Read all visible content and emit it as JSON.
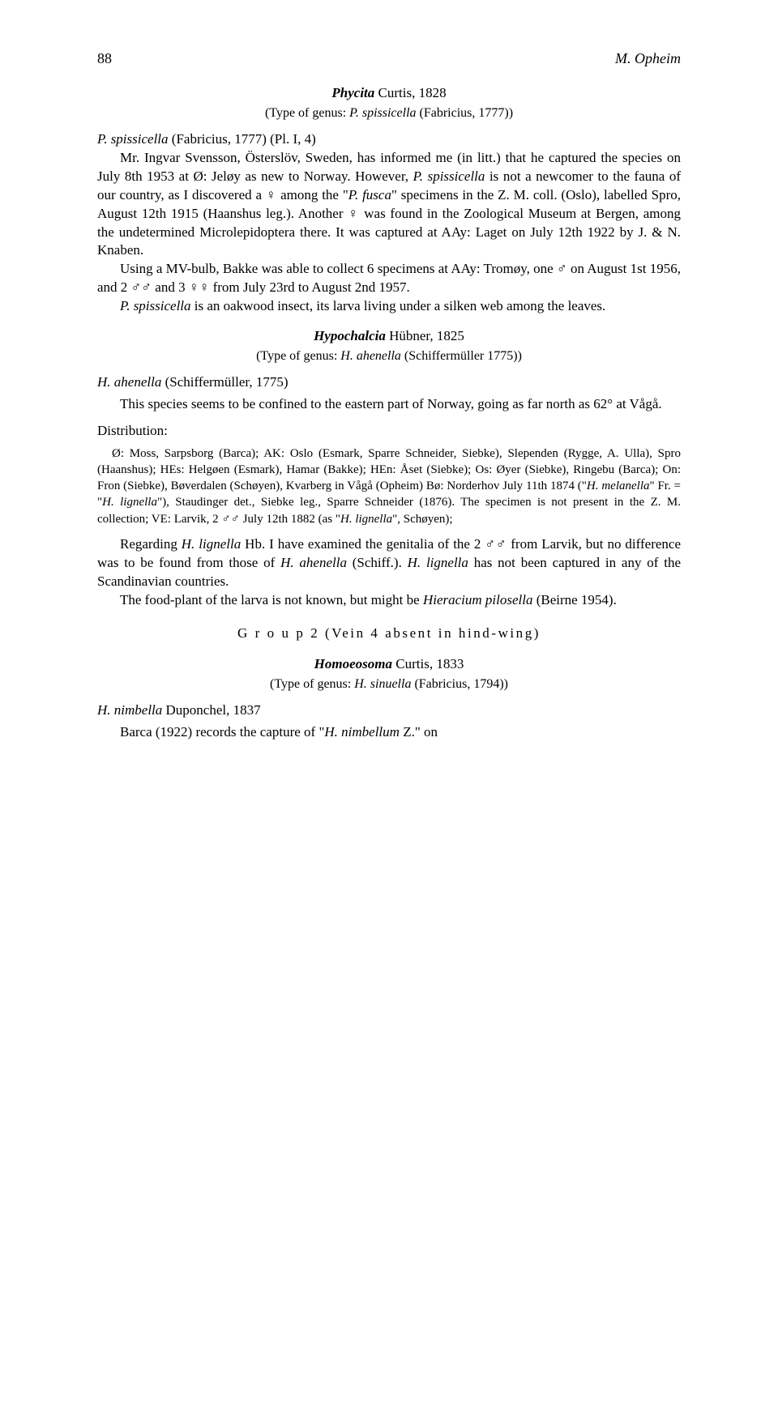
{
  "header": {
    "page_number": "88",
    "author": "M. Opheim"
  },
  "phycita": {
    "genus_line_name": "Phycita",
    "genus_line_rest": " Curtis, 1828",
    "type_line_prefix": "(Type of genus: ",
    "type_line_species": "P. spissicella",
    "type_line_suffix": " (Fabricius, 1777))",
    "para1_species": "P. spissicella",
    "para1_after": " (Fabricius, 1777) (Pl. I, 4)",
    "para2_a": "Mr. Ingvar Svensson, Österslöv, Sweden, has informed me (in litt.) that he captured the species on July 8th 1953 at Ø: Jeløy as new to Norway. However, ",
    "para2_b": "P. spissicella",
    "para2_c": " is not a newcomer to the fauna of our country, as I discovered a ♀ among the \"",
    "para2_d": "P. fusca",
    "para2_e": "\" specimens in the Z. M. coll. (Oslo), labelled Spro, August 12th 1915 (Haanshus leg.). Another ♀ was found in the Zoological Museum at Bergen, among the undetermined Microlepidoptera there. It was captured at AAy: Laget on July 12th 1922 by J. & N. Knaben.",
    "para3": "Using a MV-bulb, Bakke was able to collect 6 specimens at AAy: Tromøy, one ♂ on August 1st 1956, and 2 ♂♂ and 3 ♀♀ from July 23rd to August 2nd 1957.",
    "para4_a": "P. spissicella",
    "para4_b": " is an oakwood insect, its larva living under a silken web among the leaves."
  },
  "hypochalcia": {
    "genus_line_name": "Hypochalcia",
    "genus_line_rest": " Hübner, 1825",
    "type_line_prefix": "(Type of genus: ",
    "type_line_species": "H. ahenella",
    "type_line_suffix": " (Schiffermüller 1775))",
    "species_heading_a": "H. ahenella",
    "species_heading_b": " (Schiffermüller, 1775)",
    "para1": "This species seems to be confined to the eastern part of Norway, going as far north as 62° at Vågå.",
    "distribution_label": "Distribution:",
    "dist_a": "Ø: Moss, Sarpsborg (Barca); AK: Oslo (Esmark, Sparre Schneider, Siebke), Slependen (Rygge, A. Ulla), Spro (Haanshus); HEs: Helgøen (Esmark), Hamar (Bakke); HEn: Åset (Siebke); Os: Øyer (Siebke), Ringebu (Barca); On: Fron (Siebke), Bøverdalen (Schøyen), Kvarberg in Vågå (Opheim) Bø: Norderhov July 11th 1874 (\"",
    "dist_b": "H. melanella",
    "dist_c": "\" Fr. = \"",
    "dist_d": "H. lignella",
    "dist_e": "\"), Staudinger det., Siebke leg., Sparre Schneider (1876). The specimen is not present in the Z. M. collection; VE: Larvik, 2 ♂♂ July 12th 1882 (as \"",
    "dist_f": "H. lignella",
    "dist_g": "\", Schøyen);",
    "para2_a": "Regarding ",
    "para2_b": "H. lignella",
    "para2_c": " Hb. I have examined the genitalia of the 2 ♂♂ from Larvik, but no difference was to be found from those of ",
    "para2_d": "H. ahenella",
    "para2_e": " (Schiff.). ",
    "para2_f": "H. lignella",
    "para2_g": " has not been captured in any of the Scandinavian countries.",
    "para3_a": "The food-plant of the larva is not known, but might be ",
    "para3_b": "Hieracium pilosella",
    "para3_c": " (Beirne 1954)."
  },
  "group2": {
    "header": "G r o u p  2 (Vein 4 absent in hind-wing)",
    "genus_line_name": "Homoeosoma",
    "genus_line_rest": " Curtis, 1833",
    "type_line_prefix": "(Type of genus: ",
    "type_line_species": "H. sinuella",
    "type_line_suffix": " (Fabricius, 1794))",
    "species_heading_a": "H. nimbella",
    "species_heading_b": " Duponchel, 1837",
    "para1_a": "Barca (1922) records the capture of \"",
    "para1_b": "H. nimbellum",
    "para1_c": " Z.\" on"
  }
}
